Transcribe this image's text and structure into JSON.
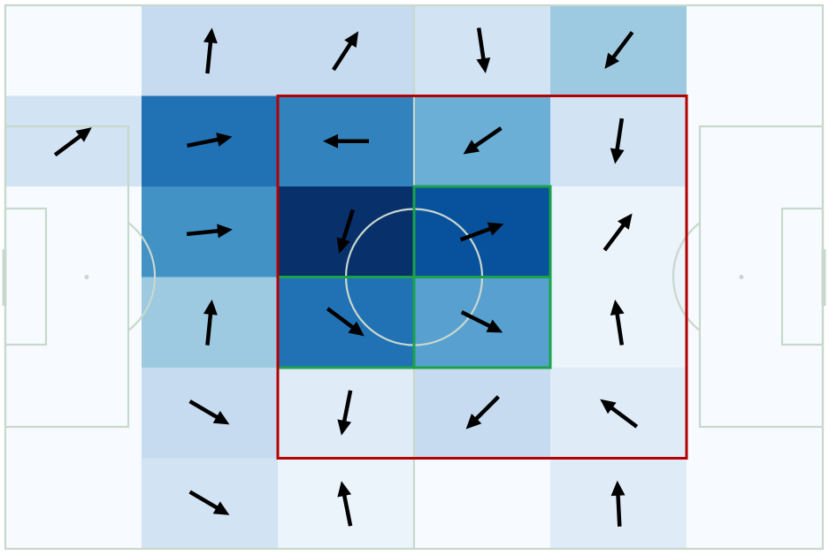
{
  "pitch": {
    "line_color": "#c8d8cc",
    "background": "#f7fbff",
    "columns": 6,
    "rows": 6
  },
  "heatmap": {
    "colorscale": "Blues",
    "cells": [
      [
        0.0,
        0.25,
        0.25,
        0.2,
        0.42,
        0.0
      ],
      [
        0.2,
        0.82,
        0.75,
        0.55,
        0.2,
        0.0
      ],
      [
        0.0,
        0.7,
        1.0,
        0.9,
        0.08,
        0.0
      ],
      [
        0.0,
        0.4,
        0.82,
        0.62,
        0.08,
        0.0
      ],
      [
        0.0,
        0.25,
        0.15,
        0.25,
        0.15,
        0.0
      ],
      [
        0.0,
        0.2,
        0.08,
        0.0,
        0.15,
        0.0
      ]
    ],
    "colors": {
      "0.00": "#f7fbff",
      "0.08": "#ebf3fb",
      "0.15": "#dfebf7",
      "0.20": "#d2e3f3",
      "0.25": "#c6dbef",
      "0.40": "#9ecae1",
      "0.42": "#9ecae1",
      "0.55": "#6baed6",
      "0.62": "#57a0d0",
      "0.70": "#4292c6",
      "0.75": "#3182bd",
      "0.82": "#2171b5",
      "0.90": "#08519c",
      "1.00": "#08306b"
    }
  },
  "arrows": [
    {
      "row": 0,
      "col": 1,
      "dx": 0.1,
      "dy": -1.0
    },
    {
      "row": 0,
      "col": 2,
      "dx": 0.55,
      "dy": -0.85
    },
    {
      "row": 0,
      "col": 3,
      "dx": 0.15,
      "dy": 1.0
    },
    {
      "row": 0,
      "col": 4,
      "dx": -0.6,
      "dy": 0.8
    },
    {
      "row": 1,
      "col": 0,
      "dx": 0.8,
      "dy": -0.6
    },
    {
      "row": 1,
      "col": 1,
      "dx": 1.0,
      "dy": -0.2
    },
    {
      "row": 1,
      "col": 2,
      "dx": -1.0,
      "dy": 0.0
    },
    {
      "row": 1,
      "col": 3,
      "dx": -0.8,
      "dy": 0.55
    },
    {
      "row": 1,
      "col": 4,
      "dx": -0.15,
      "dy": 1.0
    },
    {
      "row": 2,
      "col": 1,
      "dx": 1.0,
      "dy": -0.1
    },
    {
      "row": 2,
      "col": 2,
      "dx": -0.3,
      "dy": 0.95
    },
    {
      "row": 2,
      "col": 3,
      "dx": 0.95,
      "dy": -0.35
    },
    {
      "row": 2,
      "col": 4,
      "dx": 0.6,
      "dy": -0.8
    },
    {
      "row": 3,
      "col": 1,
      "dx": 0.1,
      "dy": -1.0
    },
    {
      "row": 3,
      "col": 2,
      "dx": 0.8,
      "dy": 0.6
    },
    {
      "row": 3,
      "col": 3,
      "dx": 0.9,
      "dy": 0.45
    },
    {
      "row": 3,
      "col": 4,
      "dx": -0.15,
      "dy": -1.0
    },
    {
      "row": 4,
      "col": 1,
      "dx": 0.85,
      "dy": 0.5
    },
    {
      "row": 4,
      "col": 2,
      "dx": -0.2,
      "dy": 1.0
    },
    {
      "row": 4,
      "col": 3,
      "dx": -0.7,
      "dy": 0.7
    },
    {
      "row": 4,
      "col": 4,
      "dx": -0.8,
      "dy": -0.6
    },
    {
      "row": 5,
      "col": 1,
      "dx": 0.85,
      "dy": 0.5
    },
    {
      "row": 5,
      "col": 2,
      "dx": -0.2,
      "dy": -1.0
    },
    {
      "row": 5,
      "col": 4,
      "dx": -0.05,
      "dy": -1.0
    }
  ],
  "highlights": {
    "red_box": {
      "row_start": 1,
      "row_end": 4,
      "col_start": 2,
      "col_end": 4,
      "color": "#b30000"
    },
    "green_cells": [
      {
        "row": 2,
        "col": 3
      },
      {
        "row": 3,
        "col": 2
      },
      {
        "row": 3,
        "col": 3
      }
    ],
    "green_color": "#1aa34a"
  }
}
